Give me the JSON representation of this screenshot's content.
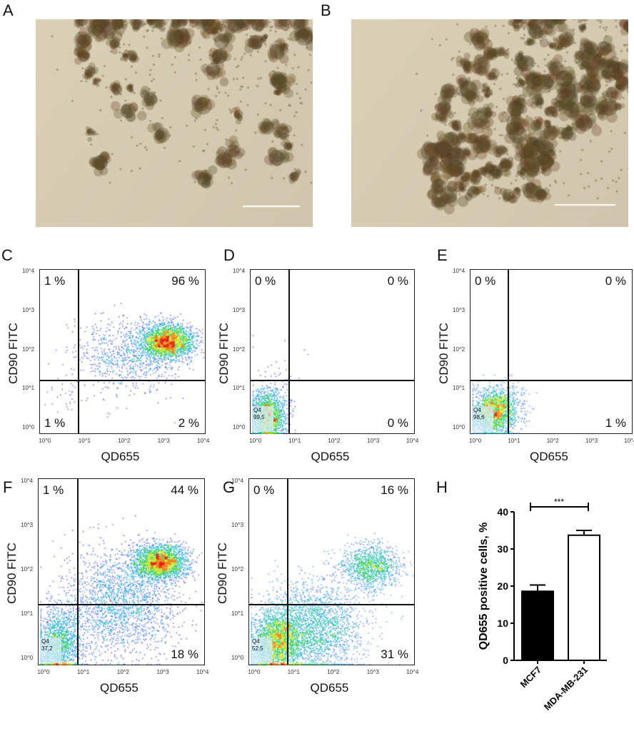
{
  "panels": {
    "a": "A",
    "b": "B",
    "c": "C",
    "d": "D",
    "e": "E",
    "f": "F",
    "g": "G",
    "h": "H"
  },
  "chart_data": [
    {
      "type": "scatter",
      "panel": "C",
      "xlabel": "QD655",
      "ylabel": "CD90 FITC",
      "xscale": "log",
      "yscale": "log",
      "xlim": [
        0.7,
        11000
      ],
      "ylim": [
        0.7,
        12000
      ],
      "x_ticks": [
        "10^0",
        "10^1",
        "10^2",
        "10^3",
        "10^4"
      ],
      "y_ticks": [
        "10^0",
        "10^1",
        "10^2",
        "10^3",
        "10^4"
      ],
      "gate_x": 6.5,
      "gate_y": 18,
      "quadrants": {
        "ul": "1 %",
        "ur": "96 %",
        "ll": "1 %",
        "lr": "2 %"
      },
      "q4": null,
      "clusters": [
        {
          "cx": 3.05,
          "cy": 2.25,
          "sx": 0.33,
          "sy": 0.22,
          "n": 2600
        },
        {
          "cx": 2.1,
          "cy": 1.9,
          "sx": 0.65,
          "sy": 0.45,
          "n": 900
        },
        {
          "cx": 0.5,
          "cy": 0.9,
          "sx": 0.25,
          "sy": 0.4,
          "n": 40
        }
      ]
    },
    {
      "type": "scatter",
      "panel": "D",
      "xlabel": "QD655",
      "ylabel": "CD90 FITC",
      "xscale": "log",
      "yscale": "log",
      "gate_x": 6.5,
      "gate_y": 18,
      "quadrants": {
        "ul": "0 %",
        "ur": "0 %",
        "ll": "",
        "lr": "0 %"
      },
      "q4": {
        "name": "Q4",
        "value": "99,5"
      },
      "clusters": [
        {
          "cx": 0.3,
          "cy": 0.35,
          "sx": 0.22,
          "sy": 0.32,
          "n": 1800
        },
        {
          "cx": 0.5,
          "cy": 1.2,
          "sx": 0.3,
          "sy": 0.5,
          "n": 40
        }
      ]
    },
    {
      "type": "scatter",
      "panel": "E",
      "xlabel": "QD655",
      "ylabel": "CD90 FITC",
      "xscale": "log",
      "yscale": "log",
      "gate_x": 6.5,
      "gate_y": 18,
      "quadrants": {
        "ul": "0 %",
        "ur": "0 %",
        "ll": "",
        "lr": "1 %"
      },
      "q4": {
        "name": "Q4",
        "value": "98,6"
      },
      "clusters": [
        {
          "cx": 0.45,
          "cy": 0.45,
          "sx": 0.28,
          "sy": 0.3,
          "n": 1900
        },
        {
          "cx": 0.9,
          "cy": 0.7,
          "sx": 0.25,
          "sy": 0.3,
          "n": 120
        }
      ]
    },
    {
      "type": "scatter",
      "panel": "F",
      "xlabel": "QD655",
      "ylabel": "CD90 FITC",
      "xscale": "log",
      "yscale": "log",
      "gate_x": 6.5,
      "gate_y": 18,
      "quadrants": {
        "ul": "1 %",
        "ur": "44 %",
        "ll": "",
        "lr": "18 %"
      },
      "q4": {
        "name": "Q4",
        "value": "37,2"
      },
      "clusters": [
        {
          "cx": 2.9,
          "cy": 2.2,
          "sx": 0.33,
          "sy": 0.2,
          "n": 2600
        },
        {
          "cx": 1.9,
          "cy": 1.3,
          "sx": 0.7,
          "sy": 0.6,
          "n": 2200
        },
        {
          "cx": 0.35,
          "cy": 0.35,
          "sx": 0.28,
          "sy": 0.4,
          "n": 1600
        }
      ]
    },
    {
      "type": "scatter",
      "panel": "G",
      "xlabel": "QD655",
      "ylabel": "CD90 FITC",
      "xscale": "log",
      "yscale": "log",
      "gate_x": 6.5,
      "gate_y": 18,
      "quadrants": {
        "ul": "0 %",
        "ur": "16 %",
        "ll": "",
        "lr": "31 %"
      },
      "q4": {
        "name": "Q4",
        "value": "52,5"
      },
      "clusters": [
        {
          "cx": 2.9,
          "cy": 2.1,
          "sx": 0.35,
          "sy": 0.25,
          "n": 1300
        },
        {
          "cx": 1.4,
          "cy": 0.7,
          "sx": 0.65,
          "sy": 0.5,
          "n": 2600
        },
        {
          "cx": 0.55,
          "cy": 0.4,
          "sx": 0.3,
          "sy": 0.35,
          "n": 2200
        }
      ]
    },
    {
      "type": "bar",
      "panel": "H",
      "categories": [
        "MCF7",
        "MDA-MB-231"
      ],
      "values": [
        18.6,
        33.7
      ],
      "errors": [
        1.7,
        1.3
      ],
      "colors": [
        "#000000",
        "#ffffff"
      ],
      "ylabel": "QD655 positive cells, %",
      "ylim": [
        0,
        40
      ],
      "yticks": [
        "0",
        "10",
        "20",
        "30",
        "40"
      ],
      "significance": "***"
    }
  ]
}
